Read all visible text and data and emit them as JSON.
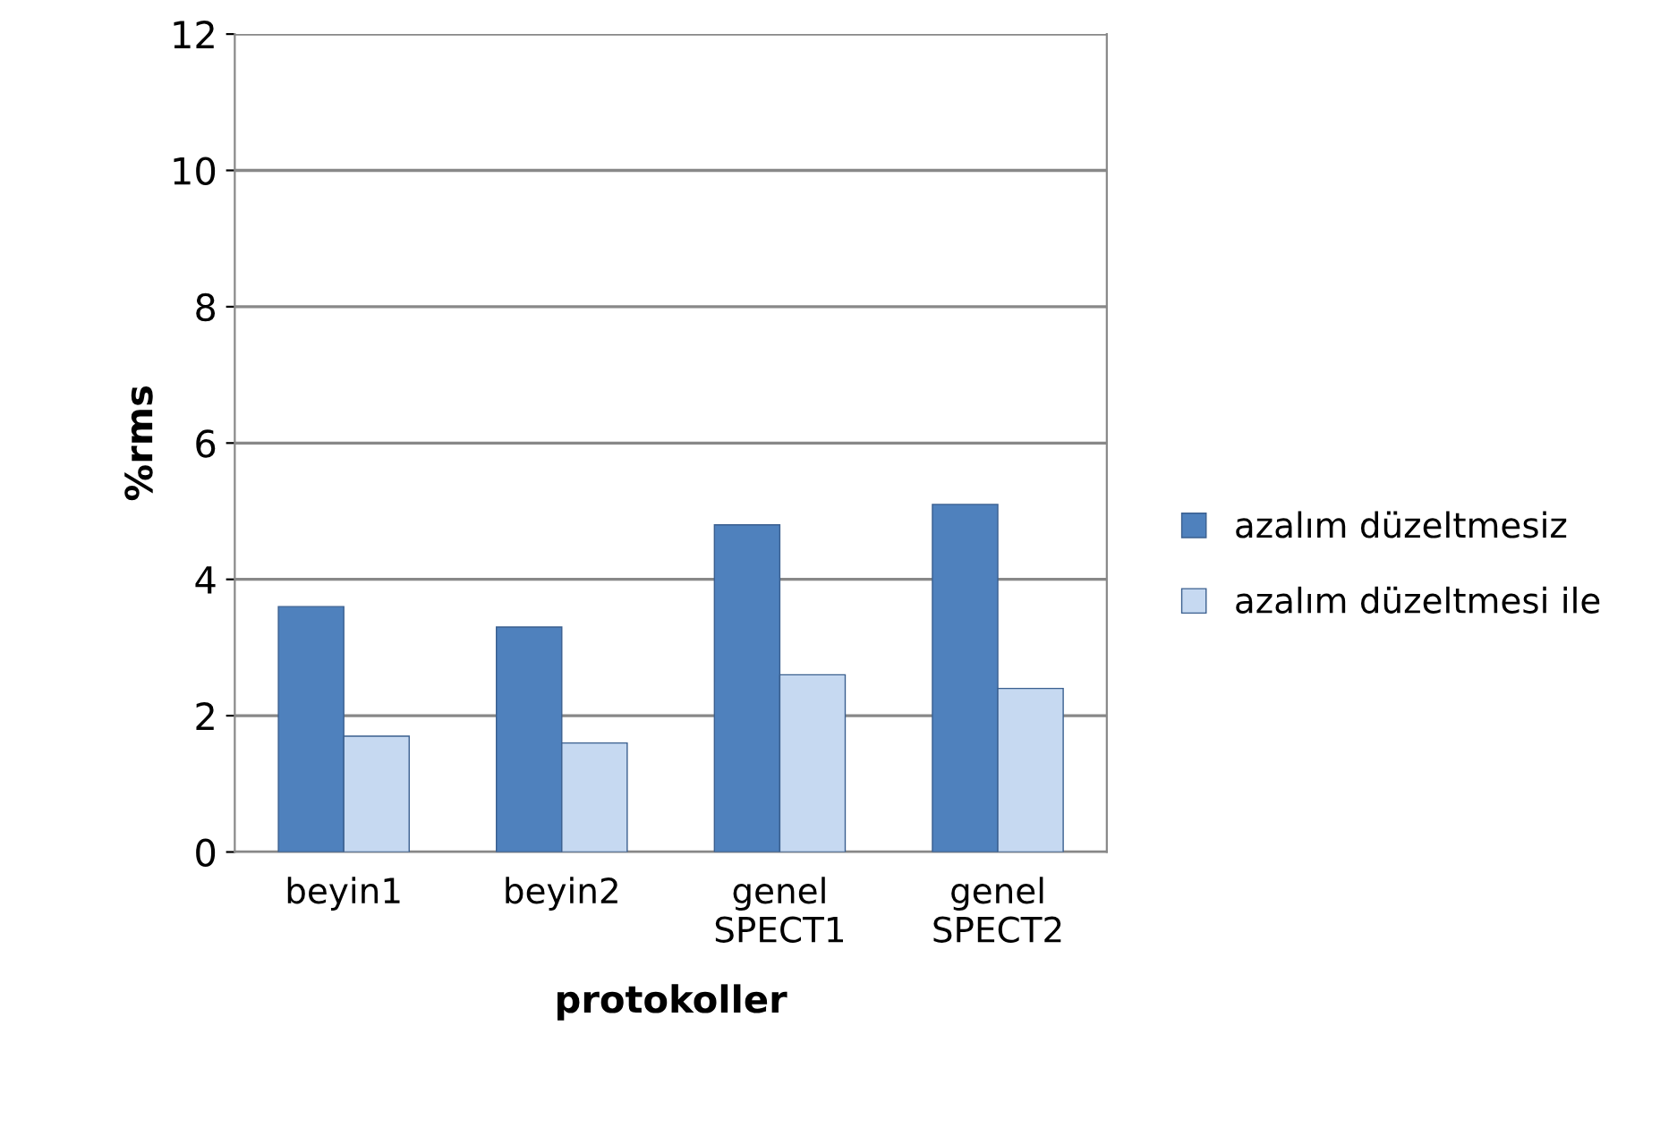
{
  "chart_data": {
    "type": "bar",
    "xlabel": "protokoller",
    "ylabel": "%rms",
    "categories": [
      "beyin1",
      "beyin2",
      "genel\nSPECT1",
      "genel\nSPECT2"
    ],
    "series": [
      {
        "name": "azalım düzeltmesiz",
        "color": "#4f81bd",
        "values": [
          3.6,
          3.3,
          4.8,
          5.1
        ]
      },
      {
        "name": "azalım düzeltmesi ile",
        "color": "#c6d9f1",
        "values": [
          1.7,
          1.6,
          2.6,
          2.4
        ]
      }
    ],
    "ylim": [
      0,
      12
    ],
    "yticks": [
      0,
      2,
      4,
      6,
      8,
      10,
      12
    ],
    "grid": "y",
    "legend": "right"
  }
}
